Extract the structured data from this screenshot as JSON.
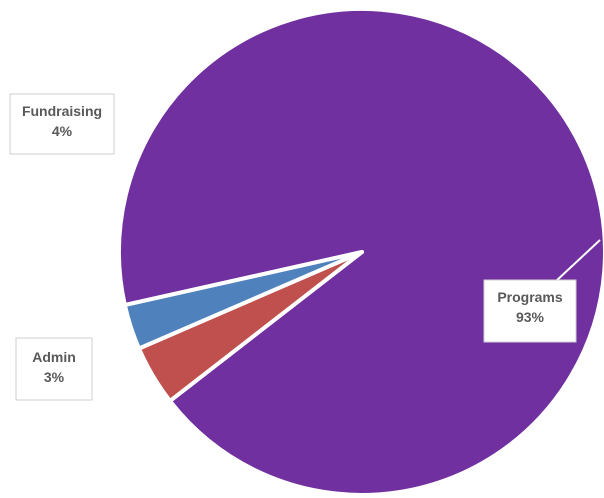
{
  "chart_data": {
    "type": "pie",
    "title": "",
    "slices": [
      {
        "label": "Programs",
        "value": 93,
        "display": "93%",
        "color": "#7030a0"
      },
      {
        "label": "Fundraising",
        "value": 4,
        "display": "4%",
        "color": "#c0504d"
      },
      {
        "label": "Admin",
        "value": 3,
        "display": "3%",
        "color": "#4f81bd"
      }
    ],
    "legend": "none",
    "labels": "callouts with leader lines"
  }
}
